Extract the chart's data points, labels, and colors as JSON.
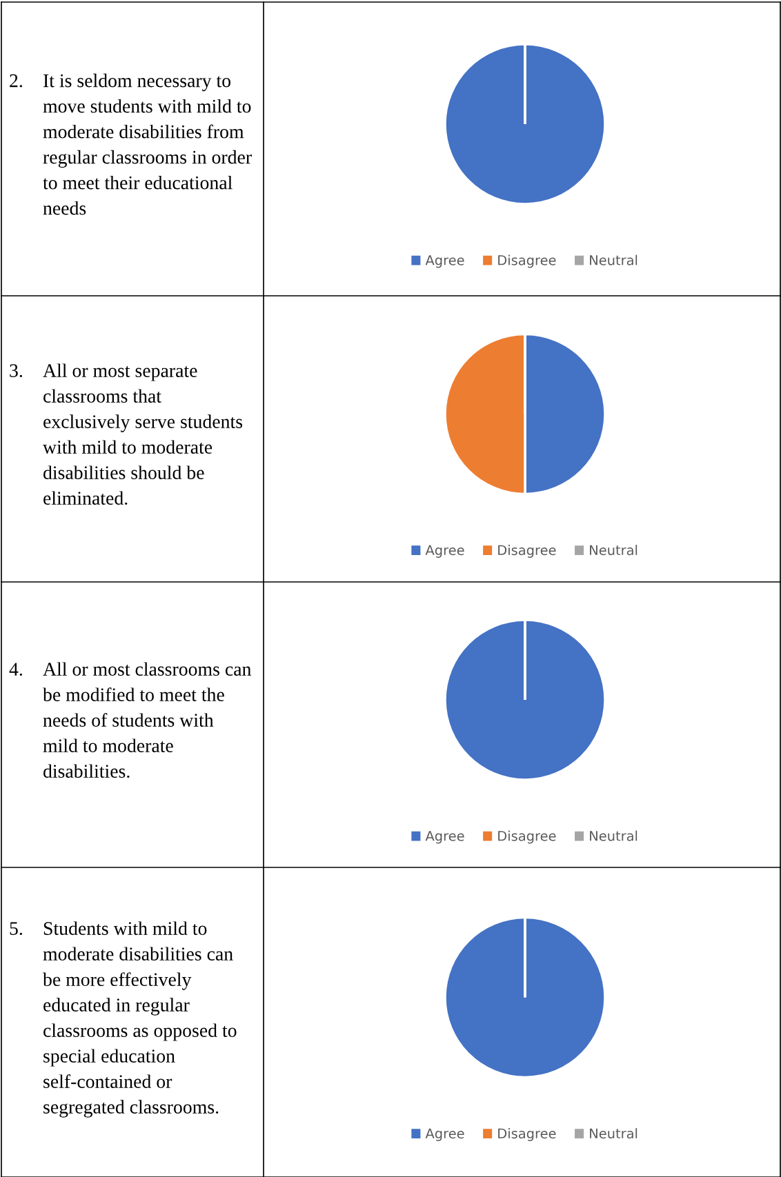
{
  "chart_data": [
    {
      "type": "pie",
      "title": "2. It is seldom necessary to move students with mild to moderate disabilities from regular classrooms in order to meet their educational needs",
      "categories": [
        "Agree",
        "Disagree",
        "Neutral"
      ],
      "values": [
        100,
        0,
        0
      ],
      "colors": [
        "#4472c4",
        "#ed7d31",
        "#a5a5a5"
      ],
      "legend": "bottom"
    },
    {
      "type": "pie",
      "title": "3. All or most separate classrooms that exclusively serve students with mild to moderate disabilities should be eliminated.",
      "categories": [
        "Agree",
        "Disagree",
        "Neutral"
      ],
      "values": [
        50,
        50,
        0
      ],
      "colors": [
        "#4472c4",
        "#ed7d31",
        "#a5a5a5"
      ],
      "legend": "bottom"
    },
    {
      "type": "pie",
      "title": "4. All or most classrooms can be modified to meet the needs of students with mild to moderate disabilities.",
      "categories": [
        "Agree",
        "Disagree",
        "Neutral"
      ],
      "values": [
        100,
        0,
        0
      ],
      "colors": [
        "#4472c4",
        "#ed7d31",
        "#a5a5a5"
      ],
      "legend": "bottom"
    },
    {
      "type": "pie",
      "title": "5. Students with mild to moderate disabilities can be more effectively educated in regular classrooms as opposed to special education self-contained or segregated classrooms.",
      "categories": [
        "Agree",
        "Disagree",
        "Neutral"
      ],
      "values": [
        100,
        0,
        0
      ],
      "colors": [
        "#4472c4",
        "#ed7d31",
        "#a5a5a5"
      ],
      "legend": "bottom"
    }
  ]
}
